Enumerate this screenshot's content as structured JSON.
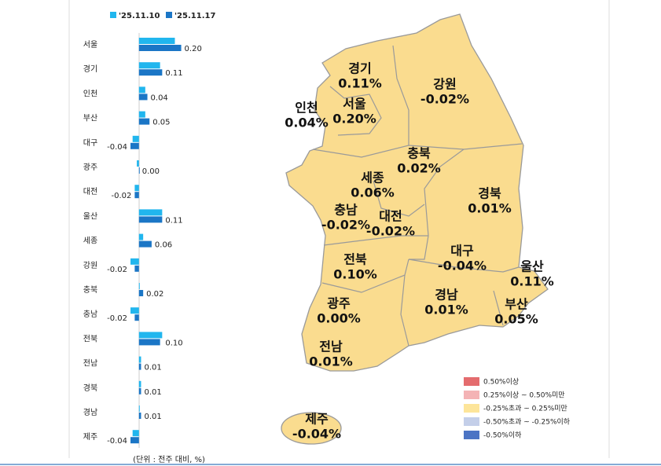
{
  "chart_data": {
    "type": "bar",
    "orientation": "horizontal",
    "categories": [
      "서울",
      "경기",
      "인천",
      "부산",
      "대구",
      "광주",
      "대전",
      "울산",
      "세종",
      "강원",
      "충북",
      "충남",
      "전북",
      "전남",
      "경북",
      "경남",
      "제주"
    ],
    "series": [
      {
        "name": "'25.11.10",
        "color": "#21b6ee",
        "values": [
          0.17,
          0.1,
          0.03,
          0.03,
          -0.03,
          -0.01,
          -0.02,
          0.11,
          0.02,
          -0.04,
          0.0,
          -0.04,
          0.11,
          0.01,
          0.01,
          0.0,
          -0.03
        ]
      },
      {
        "name": "'25.11.17",
        "color": "#1b76c6",
        "values": [
          0.2,
          0.11,
          0.04,
          0.05,
          -0.04,
          0.0,
          -0.02,
          0.11,
          0.06,
          -0.02,
          0.02,
          -0.02,
          0.1,
          0.01,
          0.01,
          0.01,
          -0.04
        ],
        "value_labels": [
          "0.20",
          "0.11",
          "0.04",
          "0.05",
          "-0.04",
          "0.00",
          "-0.02",
          "0.11",
          "0.06",
          "-0.02",
          "0.02",
          "-0.02",
          "0.10",
          "0.01",
          "0.01",
          "0.01",
          "-0.04"
        ]
      }
    ],
    "xlim": [
      -0.2,
      0.25
    ],
    "note": "(단위 : 전주 대비, %)"
  },
  "map": {
    "regions": [
      {
        "name": "경기",
        "value": 0.11,
        "value_label": "0.11%"
      },
      {
        "name": "강원",
        "value": -0.02,
        "value_label": "-0.02%"
      },
      {
        "name": "인천",
        "value": 0.04,
        "value_label": "0.04%"
      },
      {
        "name": "서울",
        "value": 0.2,
        "value_label": "0.20%"
      },
      {
        "name": "충북",
        "value": 0.02,
        "value_label": "0.02%"
      },
      {
        "name": "세종",
        "value": 0.06,
        "value_label": "0.06%"
      },
      {
        "name": "경북",
        "value": 0.01,
        "value_label": "0.01%"
      },
      {
        "name": "충남",
        "value": -0.02,
        "value_label": "-0.02%"
      },
      {
        "name": "대전",
        "value": -0.02,
        "value_label": "-0.02%"
      },
      {
        "name": "대구",
        "value": -0.04,
        "value_label": "-0.04%"
      },
      {
        "name": "울산",
        "value": 0.11,
        "value_label": "0.11%"
      },
      {
        "name": "전북",
        "value": 0.1,
        "value_label": "0.10%"
      },
      {
        "name": "경남",
        "value": 0.01,
        "value_label": "0.01%"
      },
      {
        "name": "부산",
        "value": 0.05,
        "value_label": "0.05%"
      },
      {
        "name": "광주",
        "value": 0.0,
        "value_label": "0.00%"
      },
      {
        "name": "전남",
        "value": 0.01,
        "value_label": "0.01%"
      },
      {
        "name": "제주",
        "value": -0.04,
        "value_label": "-0.04%"
      }
    ],
    "legend": [
      {
        "label": "0.50%이상",
        "color": "#e46c6e"
      },
      {
        "label": "0.25%이상 ~ 0.50%미만",
        "color": "#f4b3b5"
      },
      {
        "label": "-0.25%초과 ~ 0.25%미만",
        "color": "#fde59a"
      },
      {
        "label": "-0.50%초과 ~ -0.25%이하",
        "color": "#c4cfe9"
      },
      {
        "label": "-0.50%이하",
        "color": "#4c74c4"
      }
    ]
  }
}
